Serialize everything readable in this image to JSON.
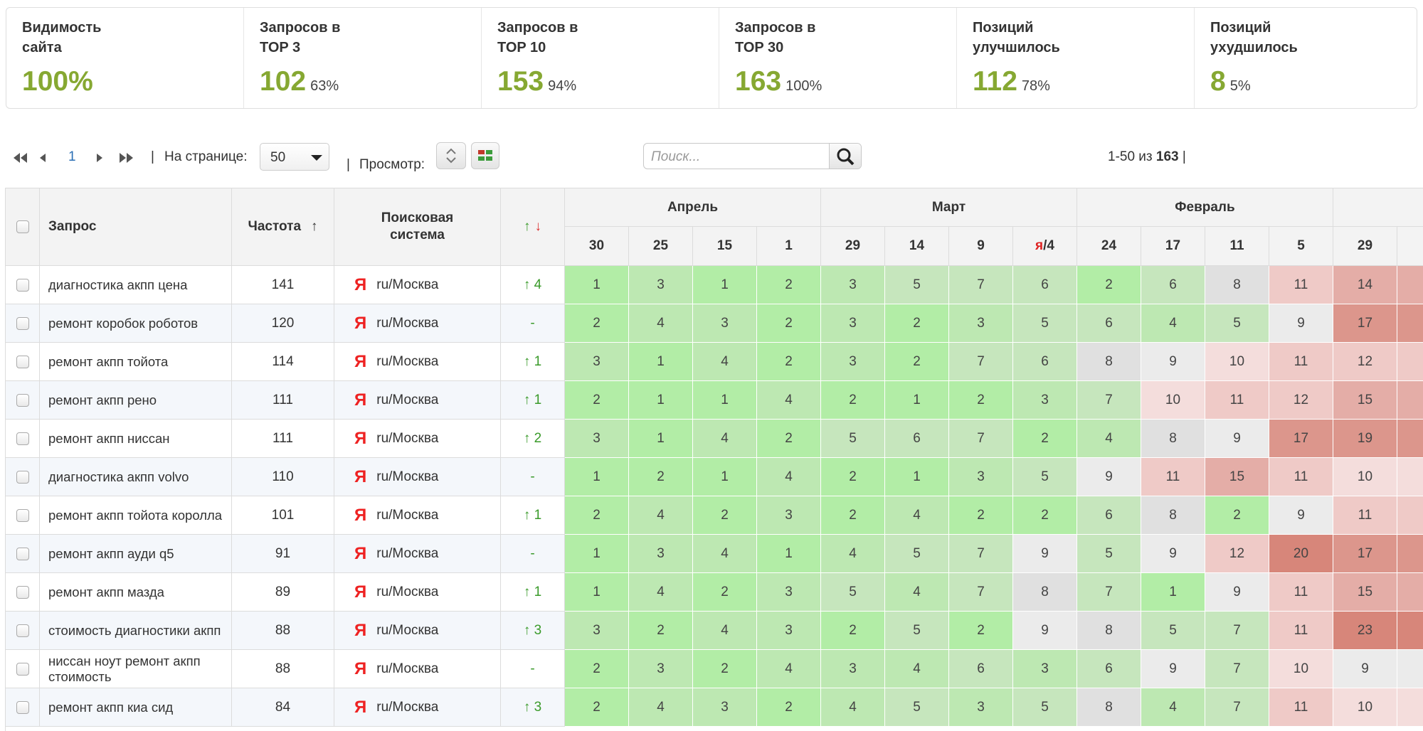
{
  "stats": [
    {
      "label": [
        "Видимость",
        "сайта"
      ],
      "value": "100%"
    },
    {
      "label": [
        "Запросов в",
        "TOP 3"
      ],
      "value": "102",
      "percent": "63%"
    },
    {
      "label": [
        "Запросов в",
        "TOP 10"
      ],
      "value": "153",
      "percent": "94%"
    },
    {
      "label": [
        "Запросов в",
        "TOP 30"
      ],
      "value": "163",
      "percent": "100%"
    },
    {
      "label": [
        "Позиций",
        "улучшилось"
      ],
      "value": "112",
      "percent": "78%"
    },
    {
      "label": [
        "Позиций",
        "ухудшилось"
      ],
      "value": "8",
      "percent": "5%"
    }
  ],
  "toolbar": {
    "page": "1",
    "separator": "|",
    "per_page_label": "На странице:",
    "per_page": "50",
    "view_label": "Просмотр:",
    "search_placeholder": "Поиск...",
    "range": "1-50 из",
    "total": "163"
  },
  "table": {
    "headers": {
      "query": "Запрос",
      "frequency": "Частота",
      "sort": "↑",
      "engine": [
        "Поисковая",
        "система"
      ],
      "trend": [
        "↑",
        "↓"
      ]
    },
    "months": [
      {
        "name": "Апрель",
        "days": [
          "30",
          "25",
          "15",
          "1"
        ]
      },
      {
        "name": "Март",
        "days": [
          "29",
          "14",
          "9",
          {
            "mark": "я",
            "day": "/4"
          }
        ]
      },
      {
        "name": "Февраль",
        "days": [
          "24",
          "17",
          "11",
          "5"
        ]
      },
      {
        "days": [
          "29"
        ]
      }
    ],
    "engine_icon": "Я",
    "rows": [
      {
        "query": "диагностика акпп цена",
        "frequency": 141,
        "engine": "ru/Москва",
        "trend": "↑ 4",
        "positions": [
          1,
          3,
          1,
          2,
          3,
          5,
          7,
          6,
          2,
          6,
          8,
          11,
          14
        ]
      },
      {
        "query": "ремонт коробок роботов",
        "frequency": 120,
        "engine": "ru/Москва",
        "trend": "-",
        "positions": [
          2,
          4,
          3,
          2,
          3,
          2,
          3,
          5,
          6,
          4,
          5,
          9,
          17
        ]
      },
      {
        "query": "ремонт акпп тойота",
        "frequency": 114,
        "engine": "ru/Москва",
        "trend": "↑ 1",
        "positions": [
          3,
          1,
          4,
          2,
          3,
          2,
          7,
          6,
          8,
          9,
          10,
          11,
          12
        ]
      },
      {
        "query": "ремонт акпп рено",
        "frequency": 111,
        "engine": "ru/Москва",
        "trend": "↑ 1",
        "positions": [
          2,
          1,
          1,
          4,
          2,
          1,
          2,
          3,
          7,
          10,
          11,
          12,
          15
        ]
      },
      {
        "query": "ремонт акпп ниссан",
        "frequency": 111,
        "engine": "ru/Москва",
        "trend": "↑ 2",
        "positions": [
          3,
          1,
          4,
          2,
          5,
          6,
          7,
          2,
          4,
          8,
          9,
          17,
          19
        ]
      },
      {
        "query": "диагностика акпп volvo",
        "frequency": 110,
        "engine": "ru/Москва",
        "trend": "-",
        "positions": [
          1,
          2,
          1,
          4,
          2,
          1,
          3,
          5,
          9,
          11,
          15,
          11,
          10
        ]
      },
      {
        "query": "ремонт акпп тойота королла",
        "frequency": 101,
        "engine": "ru/Москва",
        "trend": "↑ 1",
        "positions": [
          2,
          4,
          2,
          3,
          2,
          4,
          2,
          2,
          6,
          8,
          2,
          9,
          11
        ]
      },
      {
        "query": "ремонт акпп ауди q5",
        "frequency": 91,
        "engine": "ru/Москва",
        "trend": "-",
        "positions": [
          1,
          3,
          4,
          1,
          4,
          5,
          7,
          9,
          5,
          9,
          12,
          20,
          17
        ]
      },
      {
        "query": "ремонт акпп мазда",
        "frequency": 89,
        "engine": "ru/Москва",
        "trend": "↑ 1",
        "positions": [
          1,
          4,
          2,
          3,
          5,
          4,
          7,
          8,
          7,
          1,
          9,
          11,
          15
        ]
      },
      {
        "query": "стоимость диагностики акпп",
        "frequency": 88,
        "engine": "ru/Москва",
        "trend": "↑ 3",
        "positions": [
          3,
          2,
          4,
          3,
          2,
          5,
          2,
          9,
          8,
          5,
          7,
          11,
          23
        ]
      },
      {
        "query": "ниссан ноут ремонт акпп стоимость",
        "frequency": 88,
        "engine": "ru/Москва",
        "trend": "-",
        "positions": [
          2,
          3,
          2,
          4,
          3,
          4,
          6,
          3,
          6,
          9,
          7,
          10,
          9
        ]
      },
      {
        "query": "ремонт акпп киа сид",
        "frequency": 84,
        "engine": "ru/Москва",
        "trend": "↑ 3",
        "positions": [
          2,
          4,
          3,
          2,
          4,
          5,
          3,
          5,
          8,
          4,
          7,
          11,
          10
        ]
      }
    ]
  }
}
